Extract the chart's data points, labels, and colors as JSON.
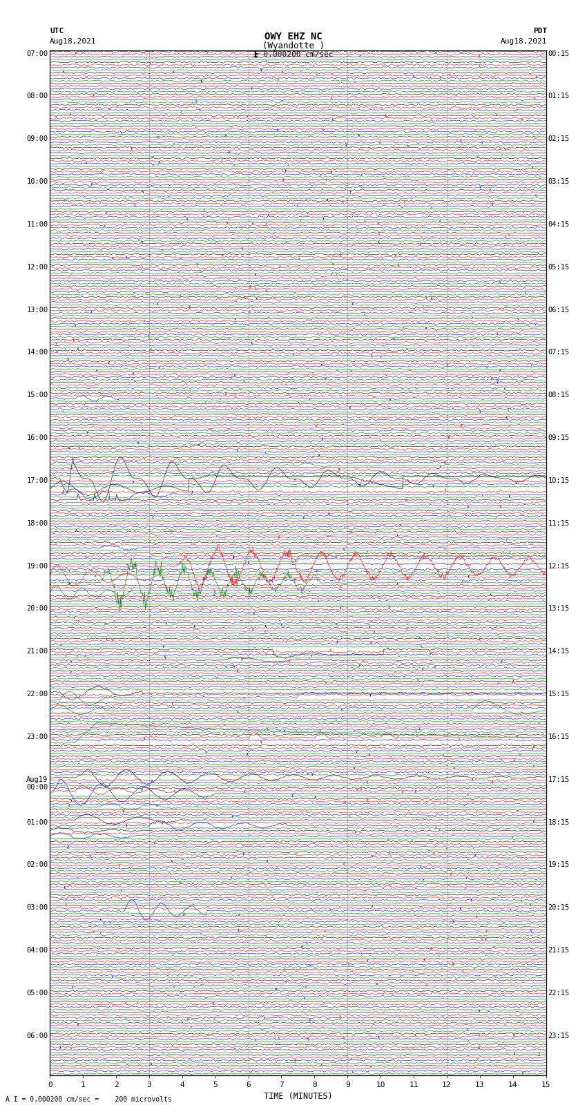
{
  "title_line1": "OWY EHZ NC",
  "title_line2": "(Wyandotte )",
  "scale_text": "= 0.000200 cm/sec",
  "bottom_scale_text": "A I = 0.000200 cm/sec =    200 microvolts",
  "utc_label": "UTC",
  "utc_date": "Aug18,2021",
  "pdt_label": "PDT",
  "pdt_date": "Aug18,2021",
  "xlabel": "TIME (MINUTES)",
  "left_times_utc": [
    "07:00",
    "08:00",
    "09:00",
    "10:00",
    "11:00",
    "12:00",
    "13:00",
    "14:00",
    "15:00",
    "16:00",
    "17:00",
    "18:00",
    "19:00",
    "20:00",
    "21:00",
    "22:00",
    "23:00",
    "Aug19\n00:00",
    "01:00",
    "02:00",
    "03:00",
    "04:00",
    "05:00",
    "06:00"
  ],
  "right_times_pdt": [
    "00:15",
    "01:15",
    "02:15",
    "03:15",
    "04:15",
    "05:15",
    "06:15",
    "07:15",
    "08:15",
    "09:15",
    "10:15",
    "11:15",
    "12:15",
    "13:15",
    "14:15",
    "15:15",
    "16:15",
    "17:15",
    "18:15",
    "19:15",
    "20:15",
    "21:15",
    "22:15",
    "23:15"
  ],
  "n_hours": 24,
  "rows_per_hour": 4,
  "minutes_per_row": 15,
  "colors": [
    "black",
    "red",
    "blue",
    "green"
  ],
  "background_color": "white",
  "grid_color": "#aaaaaa",
  "fig_width": 8.5,
  "fig_height": 16.13,
  "dpi": 100,
  "xlim": [
    0,
    15
  ],
  "xticks": [
    0,
    1,
    2,
    3,
    4,
    5,
    6,
    7,
    8,
    9,
    10,
    11,
    12,
    13,
    14,
    15
  ]
}
